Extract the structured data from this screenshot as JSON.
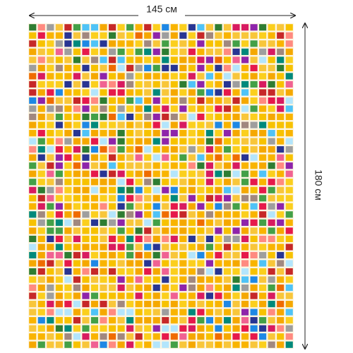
{
  "width_label": "145 см",
  "height_label": "180 см"
}
